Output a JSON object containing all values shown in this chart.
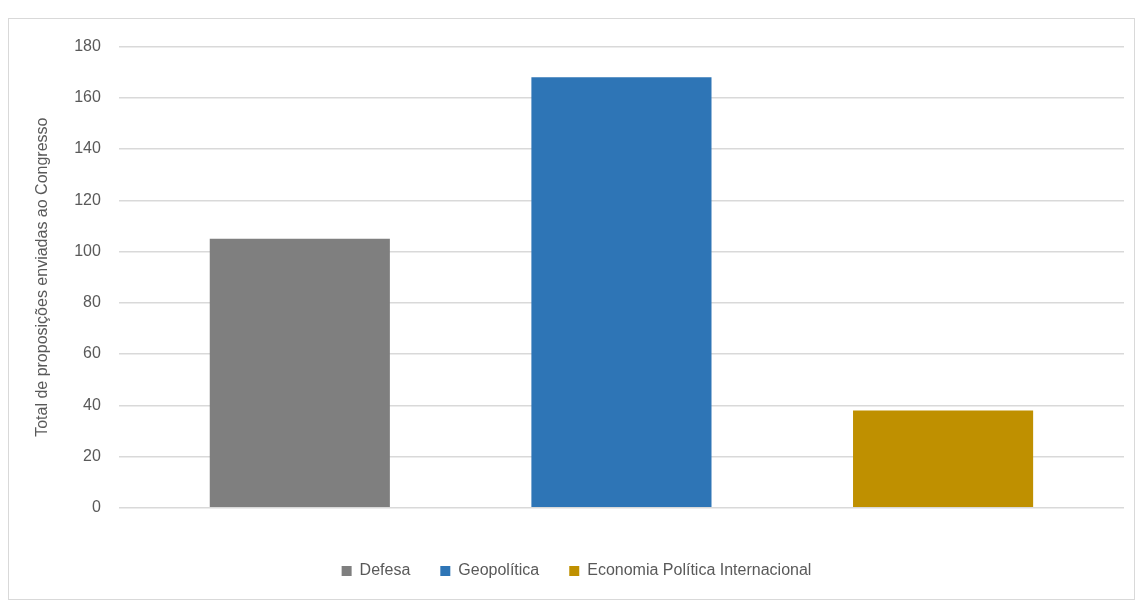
{
  "chart_data": {
    "type": "bar",
    "ylabel": "Total de proposições enviadas ao Congresso",
    "categories": [
      null
    ],
    "series": [
      {
        "name": "Defesa",
        "color": "#7f7f7f",
        "values": [
          105
        ]
      },
      {
        "name": "Geopolítica",
        "color": "#2e75b6",
        "values": [
          168
        ]
      },
      {
        "name": "Economia Política Internacional",
        "color": "#bf9000",
        "values": [
          38
        ]
      }
    ],
    "ylim": [
      0,
      180
    ],
    "yticks": [
      0,
      20,
      40,
      60,
      80,
      100,
      120,
      140,
      160,
      180
    ],
    "grid": "y",
    "legend": "bottom"
  }
}
